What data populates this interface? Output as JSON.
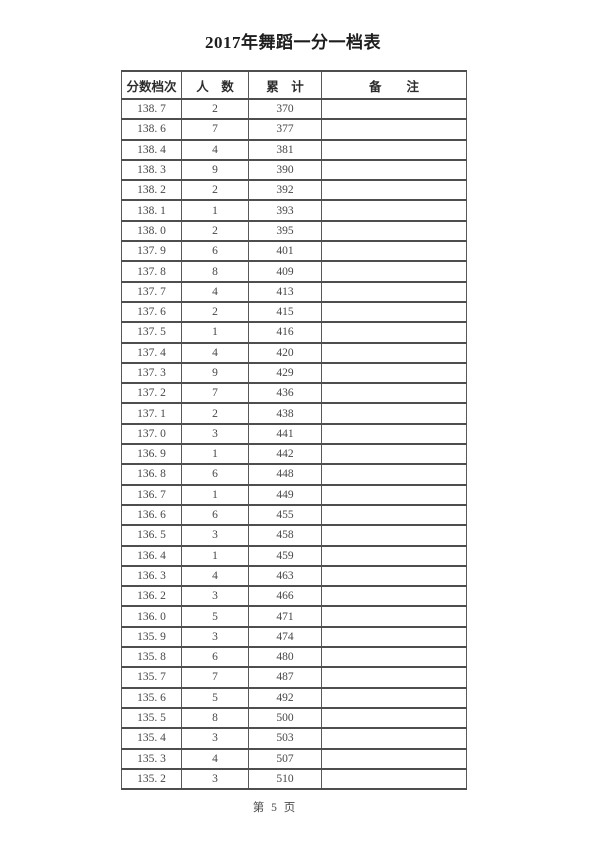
{
  "page": {
    "title": "2017年舞蹈一分一档表",
    "footer": "第 5 页"
  },
  "colors": {
    "background": "#ffffff",
    "line": "#4e4e4e",
    "ink": "#3f3f3f"
  },
  "table": {
    "headers": [
      "分数档次",
      "人　数",
      "累　计",
      "备　　注"
    ],
    "rows": [
      [
        "138. 7",
        "2",
        "370",
        ""
      ],
      [
        "138. 6",
        "7",
        "377",
        ""
      ],
      [
        "138. 4",
        "4",
        "381",
        ""
      ],
      [
        "138. 3",
        "9",
        "390",
        ""
      ],
      [
        "138. 2",
        "2",
        "392",
        ""
      ],
      [
        "138. 1",
        "1",
        "393",
        ""
      ],
      [
        "138. 0",
        "2",
        "395",
        ""
      ],
      [
        "137. 9",
        "6",
        "401",
        ""
      ],
      [
        "137. 8",
        "8",
        "409",
        ""
      ],
      [
        "137. 7",
        "4",
        "413",
        ""
      ],
      [
        "137. 6",
        "2",
        "415",
        ""
      ],
      [
        "137. 5",
        "1",
        "416",
        ""
      ],
      [
        "137. 4",
        "4",
        "420",
        ""
      ],
      [
        "137. 3",
        "9",
        "429",
        ""
      ],
      [
        "137. 2",
        "7",
        "436",
        ""
      ],
      [
        "137. 1",
        "2",
        "438",
        ""
      ],
      [
        "137. 0",
        "3",
        "441",
        ""
      ],
      [
        "136. 9",
        "1",
        "442",
        ""
      ],
      [
        "136. 8",
        "6",
        "448",
        ""
      ],
      [
        "136. 7",
        "1",
        "449",
        ""
      ],
      [
        "136. 6",
        "6",
        "455",
        ""
      ],
      [
        "136. 5",
        "3",
        "458",
        ""
      ],
      [
        "136. 4",
        "1",
        "459",
        ""
      ],
      [
        "136. 3",
        "4",
        "463",
        ""
      ],
      [
        "136. 2",
        "3",
        "466",
        ""
      ],
      [
        "136. 0",
        "5",
        "471",
        ""
      ],
      [
        "135. 9",
        "3",
        "474",
        ""
      ],
      [
        "135. 8",
        "6",
        "480",
        ""
      ],
      [
        "135. 7",
        "7",
        "487",
        ""
      ],
      [
        "135. 6",
        "5",
        "492",
        ""
      ],
      [
        "135. 5",
        "8",
        "500",
        ""
      ],
      [
        "135. 4",
        "3",
        "503",
        ""
      ],
      [
        "135. 3",
        "4",
        "507",
        ""
      ],
      [
        "135. 2",
        "3",
        "510",
        ""
      ]
    ]
  }
}
